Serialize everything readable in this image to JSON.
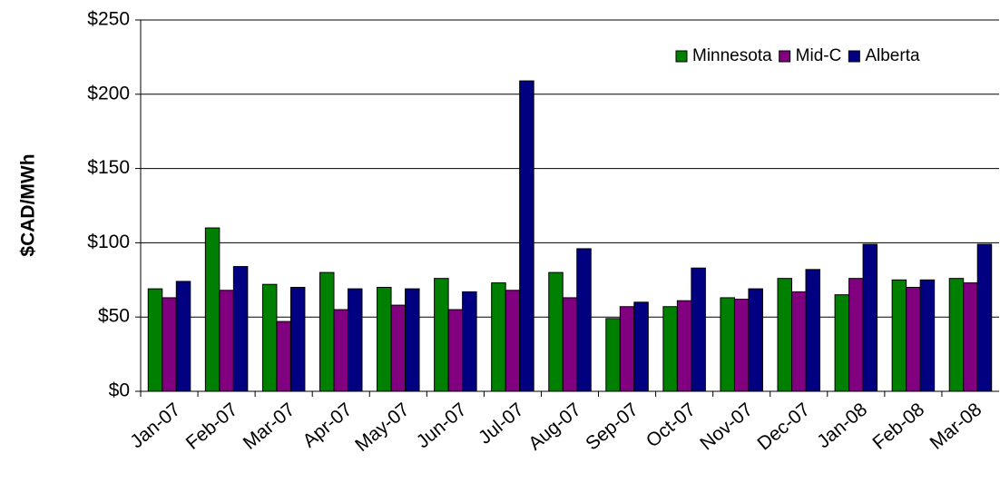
{
  "chart_data": {
    "type": "bar",
    "y_label": "$CAD/MWh",
    "categories": [
      "Jan-07",
      "Feb-07",
      "Mar-07",
      "Apr-07",
      "May-07",
      "Jun-07",
      "Jul-07",
      "Aug-07",
      "Sep-07",
      "Oct-07",
      "Nov-07",
      "Dec-07",
      "Jan-08",
      "Feb-08",
      "Mar-08"
    ],
    "series": [
      {
        "name": "Minnesota",
        "color": "#008000",
        "values": [
          69,
          110,
          72,
          80,
          70,
          76,
          73,
          80,
          49,
          57,
          63,
          76,
          65,
          75,
          76
        ]
      },
      {
        "name": "Mid-C",
        "color": "#800080",
        "values": [
          63,
          68,
          47,
          55,
          58,
          55,
          68,
          63,
          57,
          61,
          62,
          67,
          76,
          70,
          73
        ]
      },
      {
        "name": "Alberta",
        "color": "#000080",
        "values": [
          74,
          84,
          70,
          69,
          69,
          67,
          209,
          96,
          60,
          83,
          69,
          82,
          99,
          75,
          99
        ]
      }
    ],
    "ylim": [
      0,
      250
    ],
    "yticks": [
      {
        "value": 0,
        "label": "$0"
      },
      {
        "value": 50,
        "label": "$50"
      },
      {
        "value": 100,
        "label": "$100"
      },
      {
        "value": 150,
        "label": "$150"
      },
      {
        "value": 200,
        "label": "$200"
      },
      {
        "value": 250,
        "label": "$250"
      }
    ],
    "grid": true,
    "legend": "top-right"
  }
}
